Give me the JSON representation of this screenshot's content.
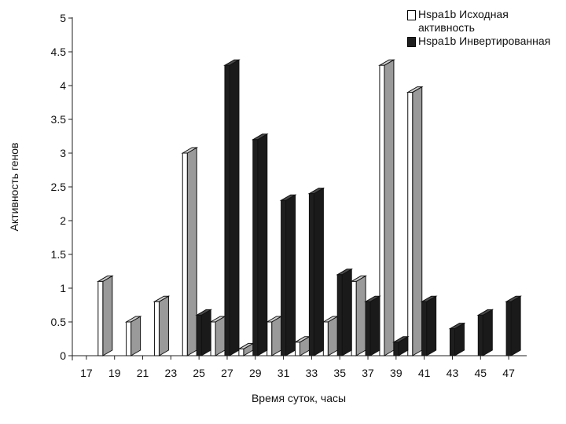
{
  "chart_data": {
    "type": "bar",
    "xlabel": "Время суток, часы",
    "ylabel": "Активность генов",
    "ylim": [
      0,
      5
    ],
    "yticks": [
      "0",
      "0.5",
      "1",
      "1.5",
      "2",
      "2.5",
      "3",
      "3.5",
      "4",
      "4.5",
      "5"
    ],
    "xticks": [
      "17",
      "19",
      "21",
      "23",
      "25",
      "27",
      "29",
      "31",
      "33",
      "35",
      "37",
      "39",
      "41",
      "43",
      "45",
      "47"
    ],
    "legend_position": "top-right",
    "series": [
      {
        "name": "Hspa1b Исходная активность",
        "color": "#ffffff",
        "points": [
          {
            "x": 18,
            "y": 1.1
          },
          {
            "x": 20,
            "y": 0.5
          },
          {
            "x": 22,
            "y": 0.8
          },
          {
            "x": 24,
            "y": 3.0
          },
          {
            "x": 26,
            "y": 0.5
          },
          {
            "x": 28,
            "y": 0.1
          },
          {
            "x": 30,
            "y": 0.5
          },
          {
            "x": 32,
            "y": 0.2
          },
          {
            "x": 34,
            "y": 0.5
          },
          {
            "x": 36,
            "y": 1.1
          },
          {
            "x": 38,
            "y": 4.3
          },
          {
            "x": 40,
            "y": 3.9
          }
        ]
      },
      {
        "name": "Hspa1b Инвертированная",
        "color": "#1e1e1e",
        "points": [
          {
            "x": 25,
            "y": 0.6
          },
          {
            "x": 27,
            "y": 4.3
          },
          {
            "x": 29,
            "y": 3.2
          },
          {
            "x": 31,
            "y": 2.3
          },
          {
            "x": 33,
            "y": 2.4
          },
          {
            "x": 35,
            "y": 1.2
          },
          {
            "x": 37,
            "y": 0.8
          },
          {
            "x": 39,
            "y": 0.2
          },
          {
            "x": 41,
            "y": 0.8
          },
          {
            "x": 43,
            "y": 0.4
          },
          {
            "x": 45,
            "y": 0.6
          },
          {
            "x": 47,
            "y": 0.8
          }
        ]
      }
    ]
  }
}
